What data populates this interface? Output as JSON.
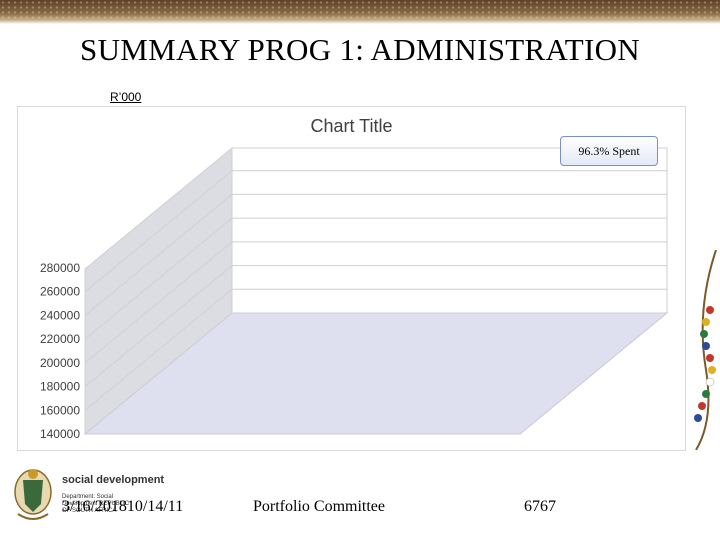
{
  "slide": {
    "title": "SUMMARY PROG 1: ADMINISTRATION",
    "unit_label": "R’000"
  },
  "chart_data": {
    "type": "bar",
    "title": "Chart Title",
    "categories": [],
    "series": [],
    "ylim": [
      140000,
      280000
    ],
    "y_ticks": [
      "140000",
      "160000",
      "180000",
      "200000",
      "220000",
      "240000",
      "260000",
      "280000"
    ],
    "grid": true,
    "annotations": [
      "96.3% Spent"
    ]
  },
  "footer": {
    "date": "3/16/201810/14/11",
    "center": "Portfolio Committee",
    "page": "6767"
  },
  "logo": {
    "name": "social development",
    "department": "Department: Social Development REPUBLIC OF SOUTH AFRICA"
  },
  "colors": {
    "plot_floor": "#dfe0ef",
    "plot_wall": "#ffffff",
    "side_wall": "#dcdce3",
    "grid": "#cfcfd6",
    "top_bar": "#6b4f32"
  }
}
